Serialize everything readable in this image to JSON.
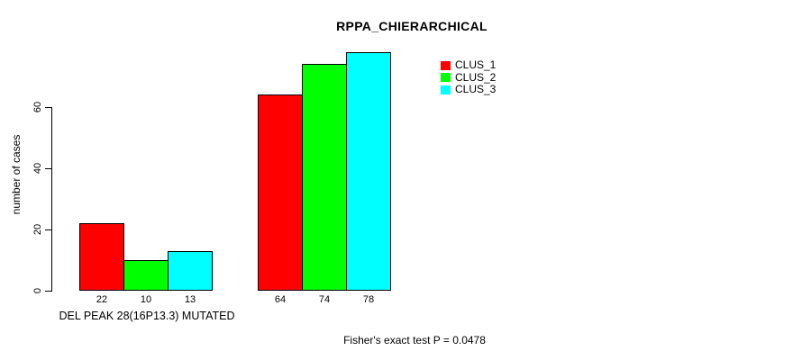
{
  "chart_data": {
    "type": "bar",
    "title": "RPPA_CHIERARCHICAL",
    "ylabel": "number of cases",
    "xlabel": "",
    "group_label": "DEL PEAK 28(16P13.3) MUTATED",
    "categories": [
      "DEL PEAK 28(16P13.3) MUTATED",
      ""
    ],
    "series": [
      {
        "name": "CLUS_1",
        "color": "#ff0000",
        "values": [
          22,
          64
        ]
      },
      {
        "name": "CLUS_2",
        "color": "#00ff00",
        "values": [
          10,
          74
        ]
      },
      {
        "name": "CLUS_3",
        "color": "#00ffff",
        "values": [
          13,
          78
        ]
      }
    ],
    "bar_labels": [
      [
        "22",
        "10",
        "13"
      ],
      [
        "64",
        "74",
        "78"
      ]
    ],
    "yticks": [
      0,
      20,
      40,
      60
    ],
    "ylim": [
      0,
      80
    ],
    "grid": false,
    "legend_position": "top-right",
    "annotation": "Fisher's exact test P = 0.0478",
    "axis_color": "#000000",
    "bar_border_color": "#000000"
  }
}
